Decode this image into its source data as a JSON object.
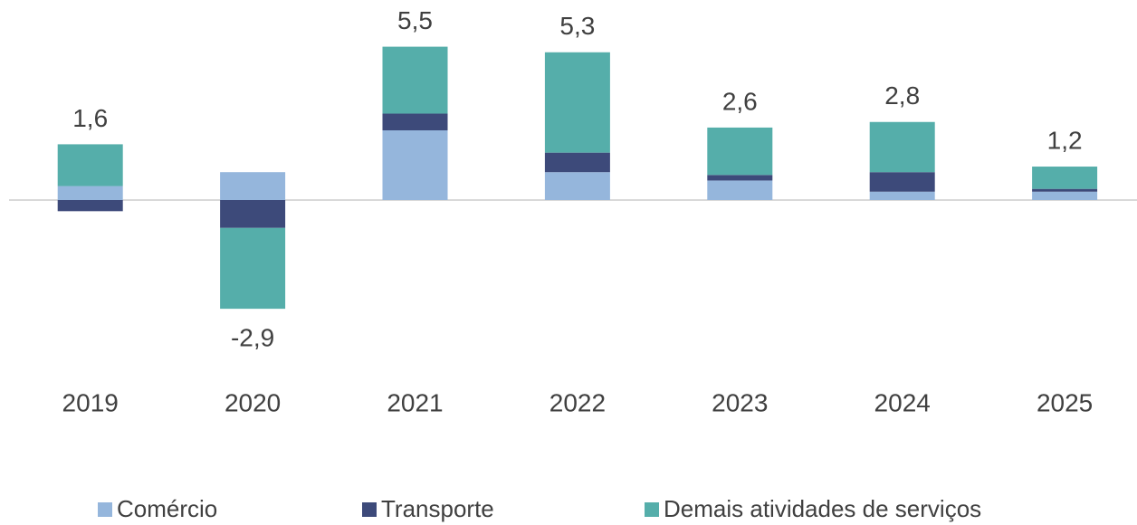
{
  "chart_data": {
    "type": "stacked_bar",
    "categories": [
      "2019",
      "2020",
      "2021",
      "2022",
      "2023",
      "2024",
      "2025"
    ],
    "series": [
      {
        "name": "Comércio",
        "color": "#95b6dc",
        "values": [
          0.5,
          1.0,
          2.5,
          1.0,
          0.7,
          0.3,
          0.3
        ]
      },
      {
        "name": "Transporte",
        "color": "#3d4a7a",
        "values": [
          -0.4,
          -1.0,
          0.6,
          0.7,
          0.2,
          0.7,
          0.1
        ]
      },
      {
        "name": "Demais atividades de serviços",
        "color": "#55aeaa",
        "values": [
          1.5,
          -2.9,
          2.4,
          3.6,
          1.7,
          1.8,
          0.8
        ]
      }
    ],
    "totals": [
      1.6,
      -2.9,
      5.5,
      5.3,
      2.6,
      2.8,
      1.2
    ],
    "total_labels": [
      "1,6",
      "-2,9",
      "5,5",
      "5,3",
      "2,6",
      "2,8",
      "1,2"
    ],
    "ylim": [
      -4,
      6
    ],
    "legend": "bottom"
  }
}
